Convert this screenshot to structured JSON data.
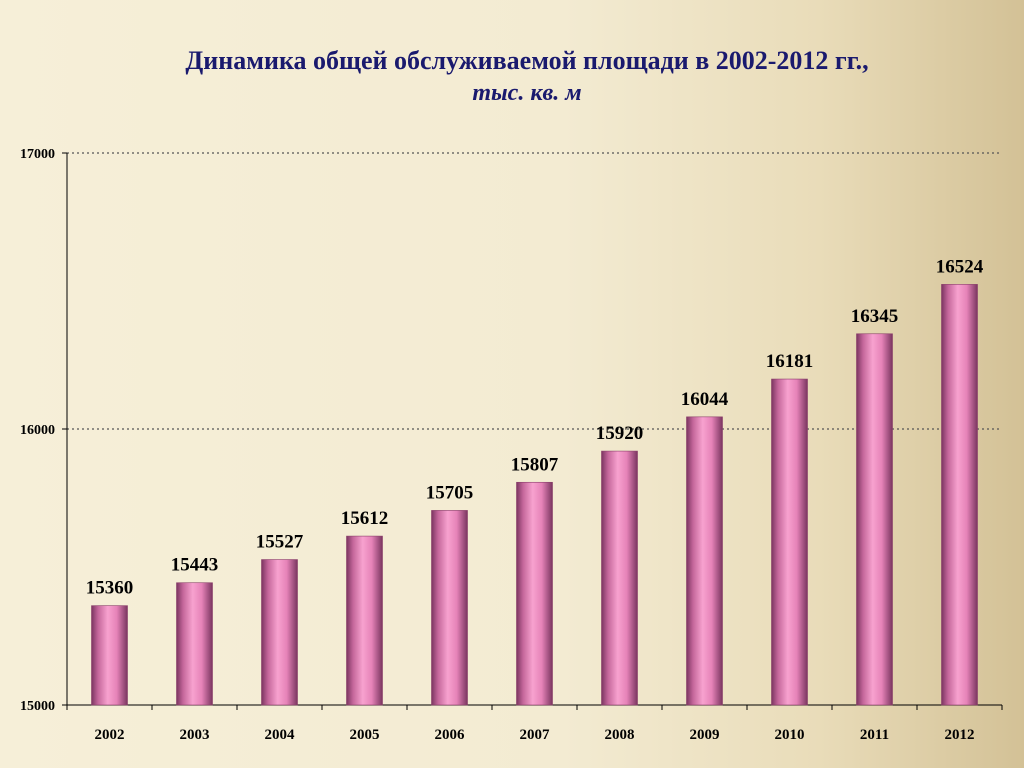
{
  "chart_data": {
    "type": "bar",
    "title": "Динамика общей обслуживаемой площади в 2002-2012 гг.,",
    "subtitle": "тыс. кв. м",
    "categories": [
      "2002",
      "2003",
      "2004",
      "2005",
      "2006",
      "2007",
      "2008",
      "2009",
      "2010",
      "2011",
      "2012"
    ],
    "values": [
      15360,
      15443,
      15527,
      15612,
      15705,
      15807,
      15920,
      16044,
      16181,
      16345,
      16524
    ],
    "ylim": [
      15000,
      17000
    ],
    "yticks": [
      15000,
      16000,
      17000
    ],
    "grid": true,
    "legend": "none",
    "colors": {
      "bar": "#f090c0",
      "bar_edge": "#8a3e6a",
      "grid": "#555555",
      "title": "#1a1a6e"
    }
  }
}
